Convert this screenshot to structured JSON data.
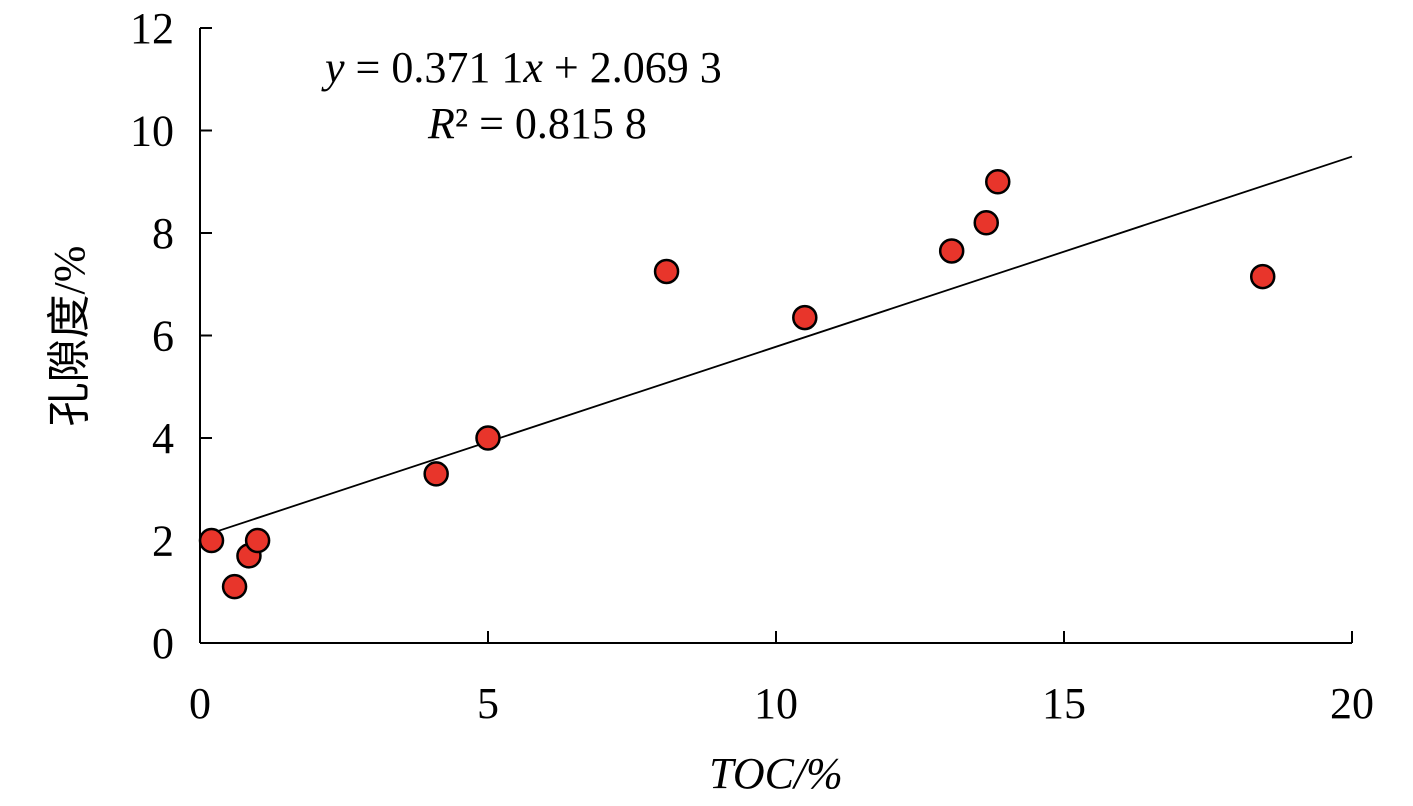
{
  "chart_data": {
    "type": "scatter",
    "xlabel": "TOC/%",
    "ylabel": "孔隙度/%",
    "xlim": [
      0,
      20
    ],
    "ylim": [
      0,
      12
    ],
    "xticks": [
      "0",
      "5",
      "10",
      "15",
      "20"
    ],
    "yticks": [
      "0",
      "2",
      "4",
      "6",
      "8",
      "10",
      "12"
    ],
    "points": [
      {
        "x": 0.2,
        "y": 2.0
      },
      {
        "x": 0.6,
        "y": 1.1
      },
      {
        "x": 0.85,
        "y": 1.7
      },
      {
        "x": 1.0,
        "y": 2.0
      },
      {
        "x": 4.1,
        "y": 3.3
      },
      {
        "x": 5.0,
        "y": 4.0
      },
      {
        "x": 8.1,
        "y": 7.25
      },
      {
        "x": 10.5,
        "y": 6.35
      },
      {
        "x": 13.05,
        "y": 7.65
      },
      {
        "x": 13.65,
        "y": 8.2
      },
      {
        "x": 13.85,
        "y": 9.0
      },
      {
        "x": 18.45,
        "y": 7.15
      }
    ],
    "trendline": {
      "slope": 0.3711,
      "intercept": 2.0693,
      "x_range": [
        0,
        20
      ]
    },
    "equation_line1_y": "y",
    "equation_line1_rest": " = 0.371 1",
    "equation_line1_x": "x",
    "equation_line1_tail": " + 2.069 3",
    "equation_line2_r": "R",
    "equation_line2_rest": "² = 0.815 8",
    "marker_color": "#e8352b",
    "marker_edge": "#000000",
    "grid": false
  }
}
